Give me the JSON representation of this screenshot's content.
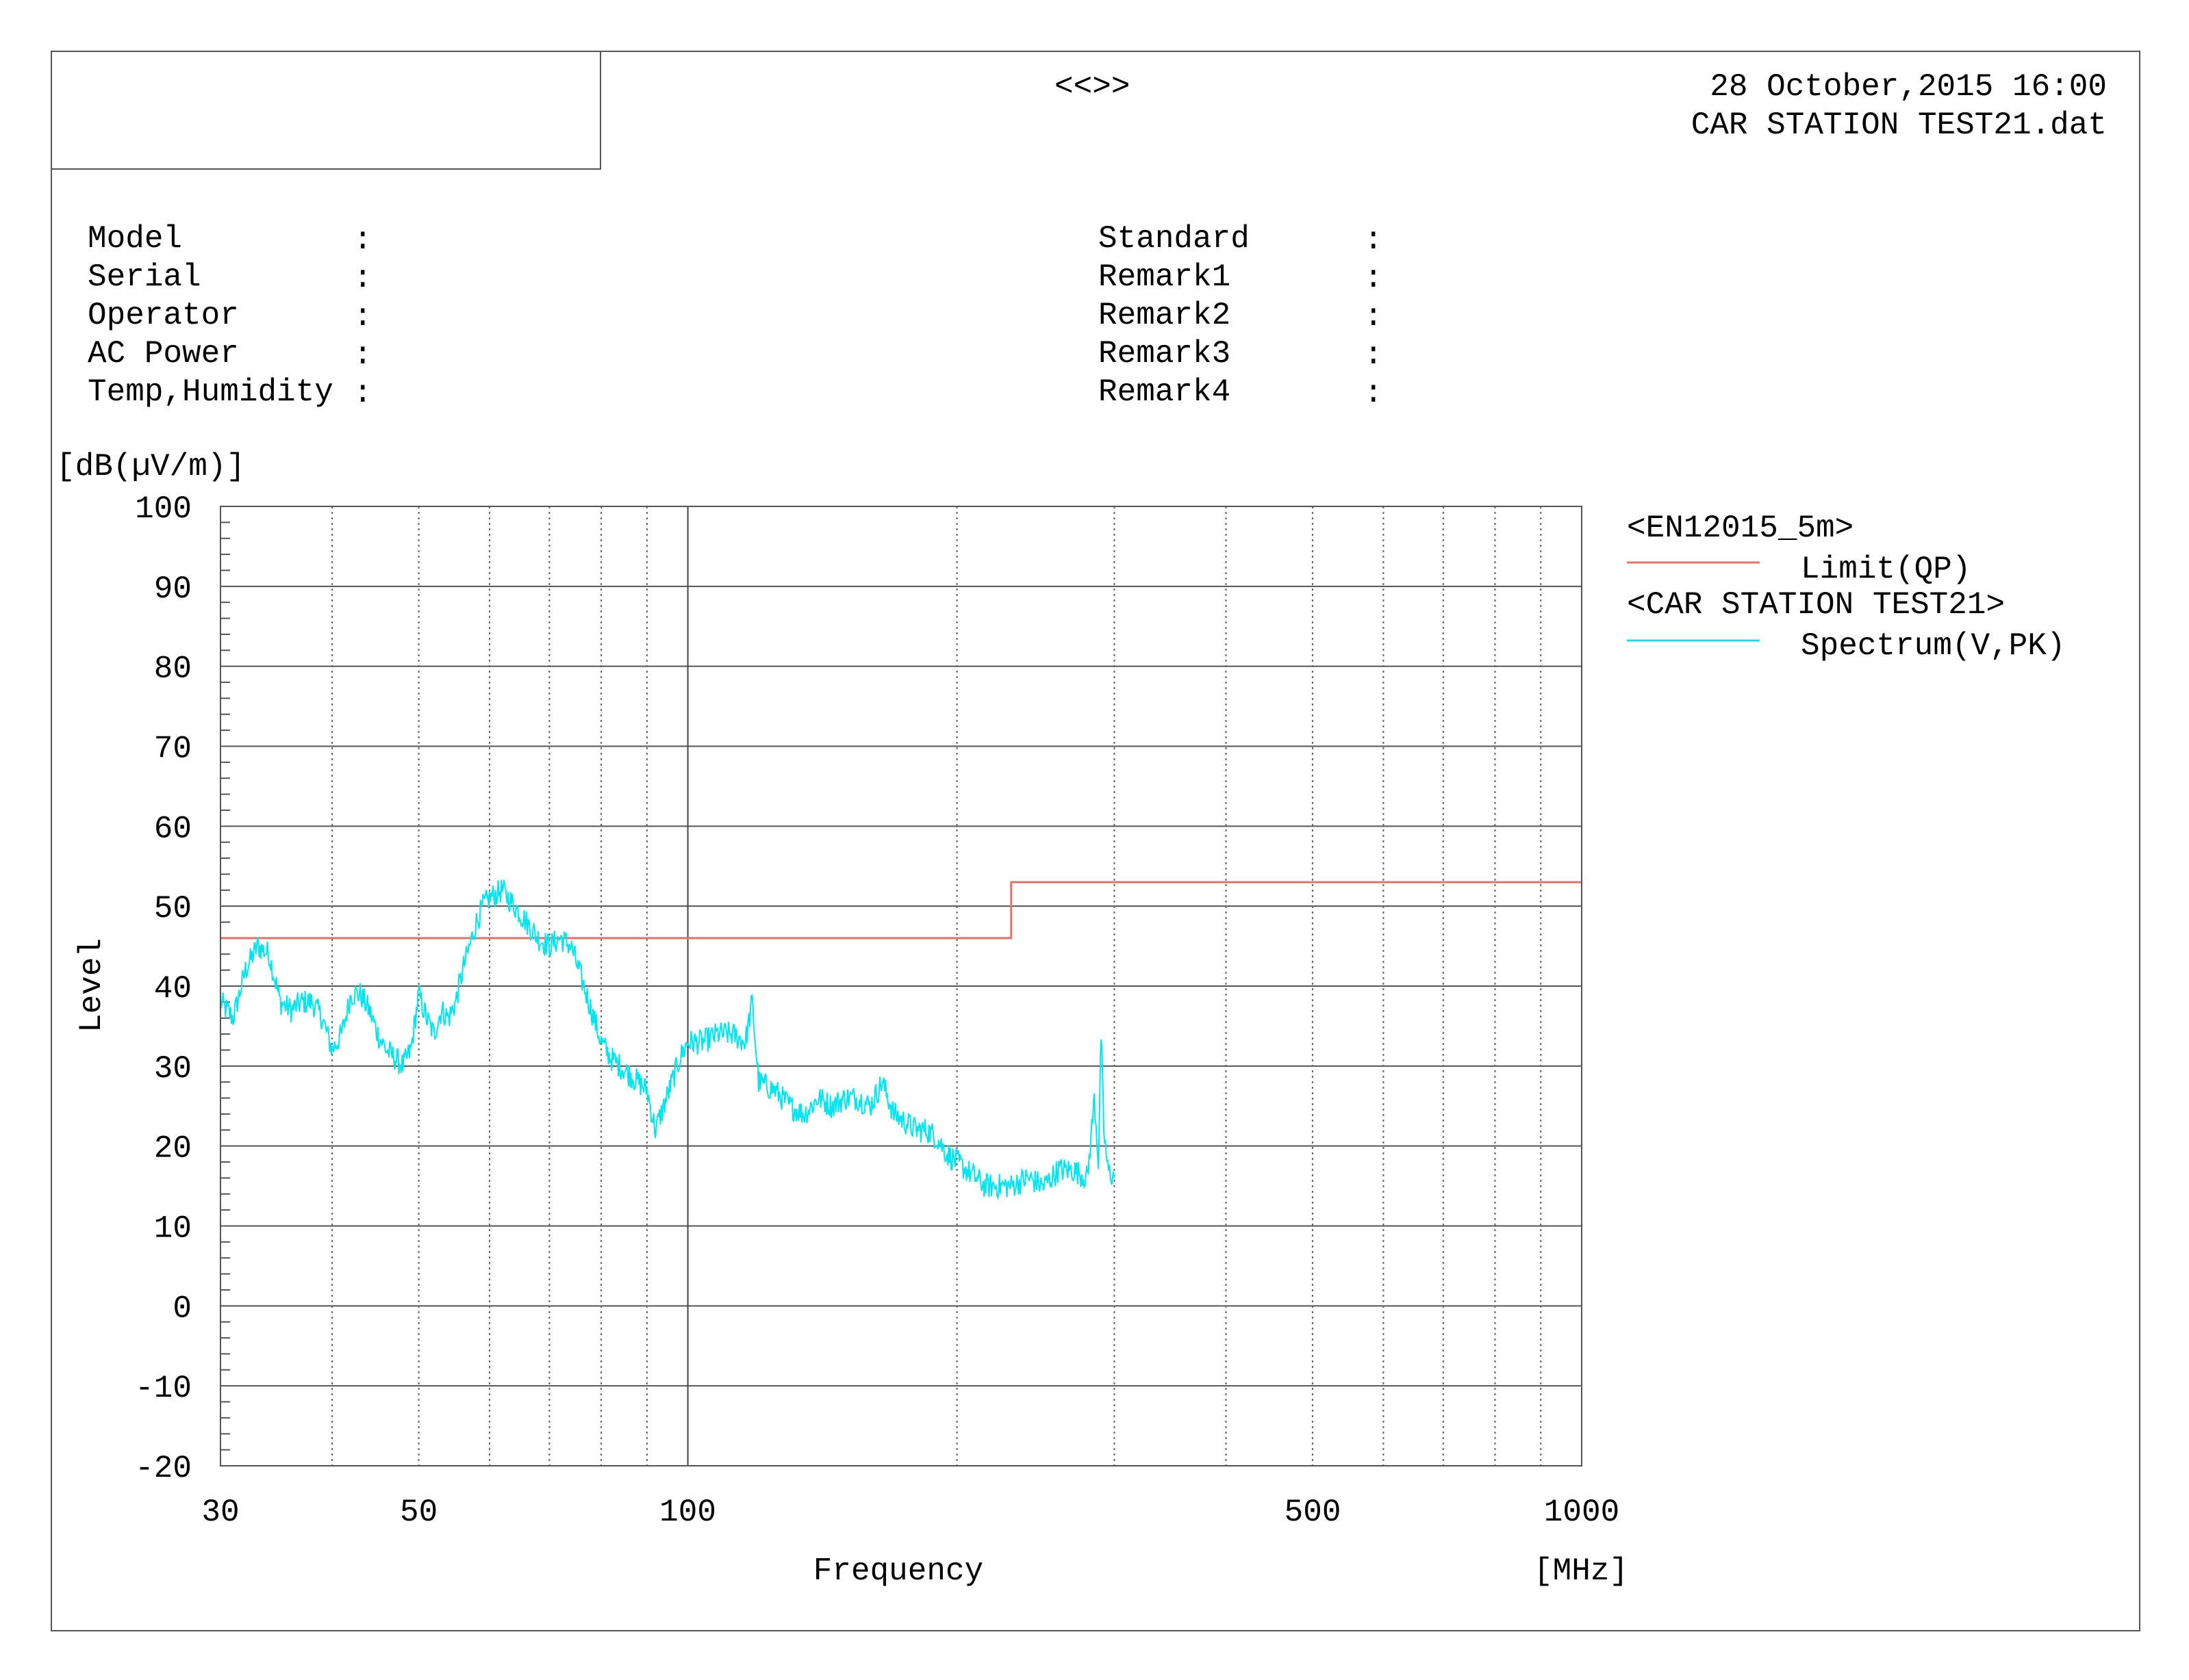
{
  "header": {
    "center_title": "<<>>",
    "datetime": "28 October,2015 16:00",
    "filename": "CAR STATION TEST21.dat"
  },
  "meta_left": [
    {
      "label": "Model",
      "value": ""
    },
    {
      "label": "Serial",
      "value": ""
    },
    {
      "label": "Operator",
      "value": ""
    },
    {
      "label": "AC Power",
      "value": ""
    },
    {
      "label": "Temp,Humidity",
      "value": ""
    }
  ],
  "meta_right": [
    {
      "label": "Standard",
      "value": ""
    },
    {
      "label": "Remark1",
      "value": ""
    },
    {
      "label": "Remark2",
      "value": ""
    },
    {
      "label": "Remark3",
      "value": ""
    },
    {
      "label": "Remark4",
      "value": ""
    }
  ],
  "meta_separator": ":",
  "chart_data": {
    "type": "line",
    "title": "",
    "xlabel": "Frequency",
    "xunit": "[MHz]",
    "ylabel": "Level",
    "yunit": "[dB(µV/m)]",
    "xscale": "log",
    "xlim": [
      30,
      1000
    ],
    "ylim": [
      -20,
      100
    ],
    "y_ticks": [
      100,
      90,
      80,
      70,
      60,
      50,
      40,
      30,
      20,
      10,
      0,
      -10,
      -20
    ],
    "x_tick_labels": [
      30,
      50,
      100,
      500,
      1000
    ],
    "grid": true,
    "legend_position": "right",
    "legend": [
      {
        "group": "<EN12015_5m>",
        "name": "Limit(QP)",
        "color": "#e8706a"
      },
      {
        "group": "<CAR STATION TEST21>",
        "name": "Spectrum(V,PK)",
        "color": "#00e5f0"
      }
    ],
    "series": [
      {
        "name": "Limit(QP)",
        "color": "#e8706a",
        "x": [
          30,
          230,
          230,
          1000
        ],
        "y": [
          46,
          46,
          53,
          53
        ]
      },
      {
        "name": "Spectrum(V,PK)",
        "color": "#00e5f0",
        "x": [
          30,
          31,
          32,
          33,
          34,
          35,
          36,
          37,
          38,
          39,
          40,
          41,
          42,
          43,
          44,
          45,
          46,
          47,
          48,
          49,
          50,
          51,
          52,
          53,
          54,
          55,
          56,
          57,
          58,
          59,
          60,
          62,
          64,
          66,
          68,
          70,
          72,
          74,
          76,
          78,
          80,
          82,
          84,
          86,
          88,
          90,
          92,
          94,
          96,
          98,
          100,
          104,
          108,
          112,
          116,
          118,
          120,
          125,
          130,
          135,
          140,
          145,
          150,
          155,
          160,
          165,
          170,
          175,
          180,
          185,
          190,
          195,
          200,
          205,
          210,
          215,
          220,
          225,
          230,
          240,
          250,
          260,
          270,
          280,
          285,
          288,
          290,
          292,
          295,
          300
        ],
        "y": [
          38,
          36,
          42,
          45,
          44,
          38,
          37,
          38,
          38,
          36,
          32,
          34,
          39,
          39,
          37,
          34,
          32,
          31,
          30,
          32,
          39,
          36,
          34,
          37,
          36,
          38,
          42,
          45,
          48,
          50,
          51,
          52,
          50,
          48,
          46,
          45,
          46,
          45,
          41,
          37,
          33,
          31,
          30,
          29,
          28,
          27,
          22,
          25,
          28,
          31,
          33,
          33,
          34,
          34,
          33,
          38,
          28,
          27,
          25,
          24,
          26,
          25,
          26,
          26,
          25,
          28,
          24,
          23,
          22,
          22,
          21,
          19,
          18,
          17,
          16,
          15,
          15,
          15,
          15,
          16,
          15,
          17,
          17,
          16,
          26,
          18,
          34,
          22,
          17,
          16
        ]
      }
    ]
  }
}
